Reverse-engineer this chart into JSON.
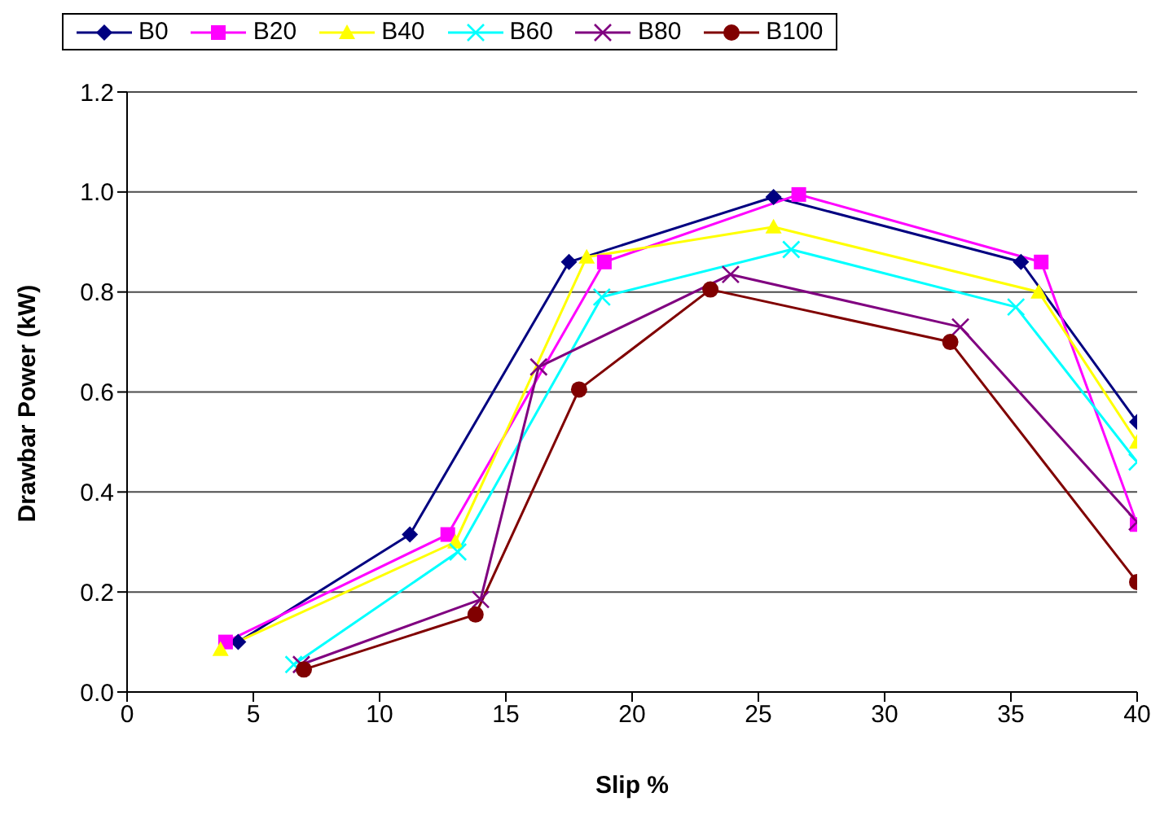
{
  "chart_data": {
    "type": "line",
    "xlabel": "Slip %",
    "ylabel": "Drawbar Power (kW)",
    "xlim": [
      0,
      40
    ],
    "xticks": [
      0,
      5,
      10,
      15,
      20,
      25,
      30,
      35,
      40
    ],
    "ylim": [
      0,
      1.2
    ],
    "yticks": [
      {
        "value": 0,
        "label": "0.0"
      },
      {
        "value": 0.2,
        "label": "0.2"
      },
      {
        "value": 0.4,
        "label": "0.4"
      },
      {
        "value": 0.6,
        "label": "0.6"
      },
      {
        "value": 0.8,
        "label": "0.8"
      },
      {
        "value": 1,
        "label": "1.0"
      },
      {
        "value": 1.2,
        "label": "1.2"
      }
    ],
    "grid": "y",
    "legend": "top",
    "series": [
      {
        "name": "B0",
        "color": "#000080",
        "marker": "diamond",
        "x": [
          4.4,
          11.2,
          17.5,
          25.6,
          35.4,
          40
        ],
        "values": [
          0.1,
          0.315,
          0.86,
          0.99,
          0.86,
          0.54
        ]
      },
      {
        "name": "B20",
        "color": "#ff00ff",
        "marker": "square",
        "x": [
          3.9,
          12.7,
          18.9,
          26.6,
          36.2,
          40
        ],
        "values": [
          0.1,
          0.315,
          0.86,
          0.995,
          0.86,
          0.335
        ]
      },
      {
        "name": "B40",
        "color": "#ffff00",
        "marker": "triangle",
        "x": [
          3.7,
          13.0,
          18.2,
          25.6,
          36.1,
          40
        ],
        "values": [
          0.085,
          0.3,
          0.87,
          0.93,
          0.8,
          0.5
        ]
      },
      {
        "name": "B60",
        "color": "#00ffff",
        "marker": "cross",
        "x": [
          6.6,
          13.1,
          18.8,
          26.3,
          35.2,
          40
        ],
        "values": [
          0.055,
          0.28,
          0.79,
          0.885,
          0.77,
          0.46
        ]
      },
      {
        "name": "B80",
        "color": "#800080",
        "marker": "cross",
        "x": [
          6.9,
          14.0,
          16.3,
          23.9,
          33.0,
          40
        ],
        "values": [
          0.055,
          0.185,
          0.65,
          0.835,
          0.73,
          0.34
        ]
      },
      {
        "name": "B100",
        "color": "#800000",
        "marker": "circle",
        "x": [
          7.0,
          13.8,
          17.9,
          23.1,
          32.6,
          40
        ],
        "values": [
          0.045,
          0.155,
          0.605,
          0.805,
          0.7,
          0.22
        ]
      }
    ]
  }
}
